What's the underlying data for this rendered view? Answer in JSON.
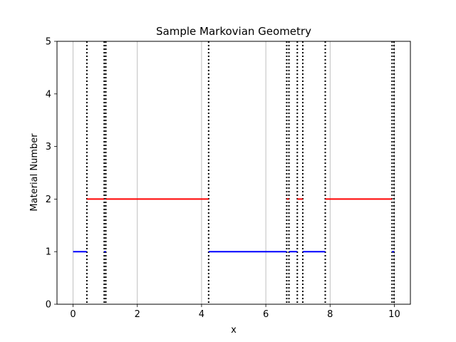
{
  "chart_data": {
    "type": "line",
    "title": "Sample Markovian Geometry",
    "xlabel": "x",
    "ylabel": "Material Number",
    "xlim": [
      -0.5,
      10.5
    ],
    "ylim": [
      0,
      5
    ],
    "xticks": [
      0,
      2,
      4,
      6,
      8,
      10
    ],
    "yticks": [
      0,
      1,
      2,
      3,
      4,
      5
    ],
    "x_grid": true,
    "y_grid": false,
    "interfaces": [
      0.43,
      0.97,
      1.02,
      4.22,
      6.65,
      6.72,
      6.98,
      7.15,
      7.85,
      9.93,
      9.99
    ],
    "segments": [
      {
        "x0": 0.0,
        "x1": 0.43,
        "material": 1,
        "color": "#0000ff"
      },
      {
        "x0": 0.43,
        "x1": 0.97,
        "material": 2,
        "color": "#ff0000"
      },
      {
        "x0": 0.97,
        "x1": 1.02,
        "material": 1,
        "color": "#0000ff"
      },
      {
        "x0": 1.02,
        "x1": 4.22,
        "material": 2,
        "color": "#ff0000"
      },
      {
        "x0": 4.22,
        "x1": 6.65,
        "material": 1,
        "color": "#0000ff"
      },
      {
        "x0": 6.65,
        "x1": 6.72,
        "material": 2,
        "color": "#ff0000"
      },
      {
        "x0": 6.72,
        "x1": 6.98,
        "material": 1,
        "color": "#0000ff"
      },
      {
        "x0": 6.98,
        "x1": 7.15,
        "material": 2,
        "color": "#ff0000"
      },
      {
        "x0": 7.15,
        "x1": 7.85,
        "material": 1,
        "color": "#0000ff"
      },
      {
        "x0": 7.85,
        "x1": 9.93,
        "material": 2,
        "color": "#ff0000"
      },
      {
        "x0": 9.93,
        "x1": 9.99,
        "material": 1,
        "color": "#0000ff"
      }
    ]
  }
}
